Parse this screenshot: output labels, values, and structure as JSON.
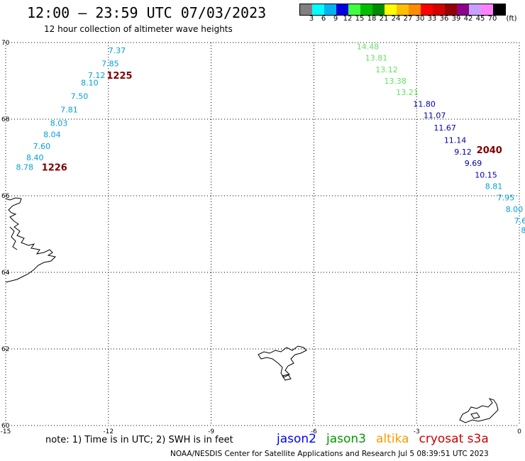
{
  "title": "12:00 – 23:59 UTC 07/03/2023",
  "subtitle": "12 hour collection of altimeter wave heights",
  "colorbar": {
    "colors": [
      "#808080",
      "#00ffff",
      "#00b3f0",
      "#0000e0",
      "#40ff40",
      "#00c000",
      "#008c00",
      "#ffff00",
      "#ffbf00",
      "#ff8c00",
      "#ff0000",
      "#d40000",
      "#960000",
      "#8c008c",
      "#c8a0ff",
      "#ff80ff",
      "#000000"
    ],
    "labels": [
      "3",
      "6",
      "9",
      "12",
      "15",
      "18",
      "21",
      "24",
      "27",
      "30",
      "33",
      "36",
      "39",
      "42",
      "45",
      "70"
    ],
    "unit": "(ft)"
  },
  "map": {
    "lon_range": [
      -15,
      0
    ],
    "lat_range": [
      60,
      70
    ],
    "lon_ticks": [
      -15,
      -12,
      -9,
      -6,
      -3,
      0
    ],
    "lat_ticks": [
      60,
      62,
      64,
      66,
      68,
      70
    ],
    "lon_tick_labels": [
      "-15",
      "-12",
      "-9",
      "-6",
      "-3",
      "0"
    ],
    "lat_tick_labels": [
      "60",
      "62",
      "64",
      "66",
      "68",
      "70"
    ],
    "grid": true
  },
  "tracks": [
    {
      "color": "#00a0d8",
      "label_color": "#800000",
      "time_label": "1225",
      "time_pos": {
        "lon": -12.05,
        "lat": 69.15
      },
      "points": [
        {
          "lon": -12.0,
          "lat": 69.8,
          "v": "7.37"
        },
        {
          "lon": -12.2,
          "lat": 69.45,
          "v": "7.85"
        },
        {
          "lon": -12.6,
          "lat": 69.15,
          "v": "7.12"
        },
        {
          "lon": -12.8,
          "lat": 68.95,
          "v": "8.10"
        },
        {
          "lon": -13.1,
          "lat": 68.6,
          "v": "7.50"
        },
        {
          "lon": -13.4,
          "lat": 68.25,
          "v": "7.81"
        },
        {
          "lon": -13.7,
          "lat": 67.9,
          "v": "8.03"
        },
        {
          "lon": -13.9,
          "lat": 67.6,
          "v": "8.04"
        },
        {
          "lon": -14.2,
          "lat": 67.3,
          "v": "7.60"
        },
        {
          "lon": -14.4,
          "lat": 67.0,
          "v": "8.40"
        },
        {
          "lon": -14.7,
          "lat": 66.75,
          "v": "8.78"
        }
      ]
    },
    {
      "color": "#00a0d8",
      "label_color": "#800000",
      "time_label": "1226",
      "time_pos": {
        "lon": -13.95,
        "lat": 66.75
      },
      "points": []
    },
    {
      "color": "#66e066",
      "label_color": "#800000",
      "time_label": "",
      "time_pos": null,
      "points": [
        {
          "lon": -4.75,
          "lat": 69.9,
          "v": "14.48"
        },
        {
          "lon": -4.5,
          "lat": 69.6,
          "v": "13.81"
        },
        {
          "lon": -4.2,
          "lat": 69.3,
          "v": "13.12"
        },
        {
          "lon": -3.95,
          "lat": 69.0,
          "v": "13.38"
        },
        {
          "lon": -3.6,
          "lat": 68.7,
          "v": "13.21"
        }
      ]
    },
    {
      "color": "#0000b0",
      "label_color": "#800000",
      "time_label": "2040",
      "time_pos": {
        "lon": -1.25,
        "lat": 67.2
      },
      "points": [
        {
          "lon": -3.1,
          "lat": 68.4,
          "v": "11.80"
        },
        {
          "lon": -2.8,
          "lat": 68.1,
          "v": "11.07"
        },
        {
          "lon": -2.5,
          "lat": 67.78,
          "v": "11.67"
        },
        {
          "lon": -2.2,
          "lat": 67.45,
          "v": "11.14"
        },
        {
          "lon": -1.9,
          "lat": 67.15,
          "v": "9.12"
        },
        {
          "lon": -1.6,
          "lat": 66.85,
          "v": "9.69"
        },
        {
          "lon": -1.3,
          "lat": 66.55,
          "v": "10.15"
        }
      ]
    },
    {
      "color": "#00a0d8",
      "label_color": "#800000",
      "time_label": "",
      "time_pos": null,
      "points": [
        {
          "lon": -1.0,
          "lat": 66.25,
          "v": "8.81"
        },
        {
          "lon": -0.65,
          "lat": 65.95,
          "v": "7.95"
        },
        {
          "lon": -0.4,
          "lat": 65.65,
          "v": "8.00"
        },
        {
          "lon": -0.15,
          "lat": 65.35,
          "v": "7.6"
        },
        {
          "lon": 0.05,
          "lat": 65.1,
          "v": "8"
        }
      ]
    }
  ],
  "footnote": "note:  1) Time is in UTC;  2) SWH is in feet",
  "legend": [
    {
      "name": "jason2",
      "color": "#0000ff"
    },
    {
      "name": "jason3",
      "color": "#009900"
    },
    {
      "name": "altika",
      "color": "#ff9900"
    },
    {
      "name": "cryosat s3a",
      "color": "#cc0000"
    }
  ],
  "credit": "NOAA/NESDIS Center for Satellite Applications and Research    Jul  5 08:39:51 UTC 2023"
}
